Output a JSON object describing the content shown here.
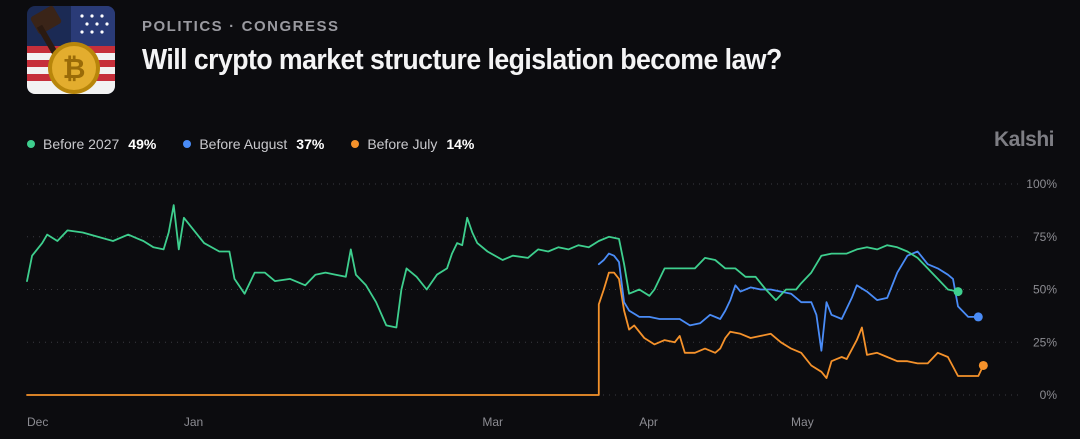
{
  "header": {
    "category": "POLITICS",
    "subcategory": "CONGRESS",
    "separator": "·",
    "title": "Will crypto market structure legislation become law?"
  },
  "brand": "Kalshi",
  "legend": [
    {
      "label": "Before 2027",
      "value": "49%",
      "color": "#3ecf8e"
    },
    {
      "label": "Before August",
      "value": "37%",
      "color": "#4a8cf7"
    },
    {
      "label": "Before July",
      "value": "14%",
      "color": "#f5922b"
    }
  ],
  "chart_data": {
    "type": "line",
    "ylim": [
      0,
      100
    ],
    "y_ticks": [
      "100%",
      "75%",
      "50%",
      "25%",
      "0%"
    ],
    "x_ticks": [
      {
        "label": "Dec",
        "day": 0
      },
      {
        "label": "Jan",
        "day": 31
      },
      {
        "label": "Mar",
        "day": 90
      },
      {
        "label": "Apr",
        "day": 121
      },
      {
        "label": "May",
        "day": 151
      }
    ],
    "series": [
      {
        "name": "Before 2027",
        "color": "#3ecf8e",
        "points": [
          [
            0,
            54
          ],
          [
            1,
            66
          ],
          [
            3,
            72
          ],
          [
            4,
            76
          ],
          [
            6,
            73
          ],
          [
            8,
            78
          ],
          [
            11,
            77
          ],
          [
            14,
            75
          ],
          [
            17,
            73
          ],
          [
            20,
            76
          ],
          [
            22,
            74
          ],
          [
            23,
            73
          ],
          [
            25,
            70
          ],
          [
            27,
            69
          ],
          [
            28,
            77
          ],
          [
            29,
            90
          ],
          [
            30,
            69
          ],
          [
            31,
            84
          ],
          [
            33,
            78
          ],
          [
            35,
            72
          ],
          [
            38,
            68
          ],
          [
            40,
            68
          ],
          [
            41,
            55
          ],
          [
            43,
            48
          ],
          [
            45,
            58
          ],
          [
            47,
            58
          ],
          [
            49,
            54
          ],
          [
            52,
            55
          ],
          [
            55,
            52
          ],
          [
            57,
            57
          ],
          [
            59,
            58
          ],
          [
            61,
            57
          ],
          [
            63,
            56
          ],
          [
            64,
            69
          ],
          [
            65,
            57
          ],
          [
            67,
            52
          ],
          [
            69,
            44
          ],
          [
            71,
            33
          ],
          [
            73,
            32
          ],
          [
            74,
            50
          ],
          [
            75,
            60
          ],
          [
            77,
            56
          ],
          [
            79,
            50
          ],
          [
            81,
            57
          ],
          [
            83,
            60
          ],
          [
            84,
            67
          ],
          [
            85,
            72
          ],
          [
            86,
            71
          ],
          [
            87,
            84
          ],
          [
            88,
            77
          ],
          [
            89,
            72
          ],
          [
            91,
            68
          ],
          [
            94,
            64
          ],
          [
            96,
            66
          ],
          [
            99,
            65
          ],
          [
            101,
            69
          ],
          [
            103,
            68
          ],
          [
            105,
            70
          ],
          [
            107,
            69
          ],
          [
            109,
            71
          ],
          [
            111,
            70
          ],
          [
            113,
            73
          ],
          [
            115,
            75
          ],
          [
            117,
            74
          ],
          [
            118,
            62
          ],
          [
            119,
            48
          ],
          [
            121,
            50
          ],
          [
            123,
            47
          ],
          [
            124,
            50
          ],
          [
            126,
            60
          ],
          [
            128,
            60
          ],
          [
            130,
            60
          ],
          [
            132,
            60
          ],
          [
            134,
            65
          ],
          [
            136,
            64
          ],
          [
            138,
            60
          ],
          [
            140,
            60
          ],
          [
            142,
            56
          ],
          [
            144,
            56
          ],
          [
            146,
            50
          ],
          [
            148,
            45
          ],
          [
            150,
            50
          ],
          [
            152,
            50
          ],
          [
            153,
            53
          ],
          [
            155,
            58
          ],
          [
            157,
            66
          ],
          [
            159,
            67
          ],
          [
            162,
            67
          ],
          [
            164,
            69
          ],
          [
            166,
            70
          ],
          [
            168,
            69
          ],
          [
            170,
            71
          ],
          [
            172,
            70
          ],
          [
            174,
            68
          ],
          [
            176,
            65
          ],
          [
            178,
            60
          ],
          [
            180,
            55
          ],
          [
            182,
            50
          ],
          [
            184,
            49
          ]
        ]
      },
      {
        "name": "Before August",
        "color": "#4a8cf7",
        "points": [
          [
            113,
            62
          ],
          [
            114,
            64
          ],
          [
            115,
            67
          ],
          [
            116,
            66
          ],
          [
            117,
            63
          ],
          [
            118,
            44
          ],
          [
            119,
            40
          ],
          [
            121,
            37
          ],
          [
            123,
            37
          ],
          [
            125,
            36
          ],
          [
            127,
            36
          ],
          [
            129,
            36
          ],
          [
            131,
            33
          ],
          [
            133,
            34
          ],
          [
            135,
            38
          ],
          [
            137,
            36
          ],
          [
            138,
            40
          ],
          [
            139,
            45
          ],
          [
            140,
            52
          ],
          [
            141,
            49
          ],
          [
            143,
            51
          ],
          [
            145,
            50
          ],
          [
            147,
            50
          ],
          [
            149,
            49
          ],
          [
            151,
            48
          ],
          [
            153,
            44
          ],
          [
            155,
            44
          ],
          [
            156,
            38
          ],
          [
            157,
            21
          ],
          [
            158,
            44
          ],
          [
            159,
            38
          ],
          [
            161,
            36
          ],
          [
            163,
            46
          ],
          [
            164,
            52
          ],
          [
            166,
            49
          ],
          [
            168,
            45
          ],
          [
            170,
            46
          ],
          [
            172,
            58
          ],
          [
            174,
            66
          ],
          [
            176,
            68
          ],
          [
            178,
            62
          ],
          [
            180,
            60
          ],
          [
            182,
            57
          ],
          [
            183,
            55
          ],
          [
            184,
            42
          ],
          [
            186,
            37
          ],
          [
            188,
            37
          ]
        ]
      },
      {
        "name": "Before July",
        "color": "#f5922b",
        "points": [
          [
            0,
            0
          ],
          [
            113,
            0
          ],
          [
            113,
            43
          ],
          [
            114,
            50
          ],
          [
            115,
            58
          ],
          [
            116,
            58
          ],
          [
            117,
            55
          ],
          [
            118,
            40
          ],
          [
            119,
            31
          ],
          [
            120,
            33
          ],
          [
            122,
            27
          ],
          [
            124,
            24
          ],
          [
            126,
            26
          ],
          [
            128,
            25
          ],
          [
            129,
            28
          ],
          [
            130,
            20
          ],
          [
            132,
            20
          ],
          [
            134,
            22
          ],
          [
            136,
            20
          ],
          [
            137,
            22
          ],
          [
            138,
            27
          ],
          [
            139,
            30
          ],
          [
            141,
            29
          ],
          [
            143,
            27
          ],
          [
            145,
            28
          ],
          [
            147,
            29
          ],
          [
            149,
            25
          ],
          [
            151,
            22
          ],
          [
            153,
            20
          ],
          [
            155,
            14
          ],
          [
            157,
            11
          ],
          [
            158,
            8
          ],
          [
            159,
            16
          ],
          [
            160,
            17
          ],
          [
            161,
            18
          ],
          [
            162,
            17
          ],
          [
            164,
            26
          ],
          [
            165,
            32
          ],
          [
            166,
            19
          ],
          [
            168,
            20
          ],
          [
            170,
            18
          ],
          [
            172,
            16
          ],
          [
            174,
            16
          ],
          [
            176,
            15
          ],
          [
            178,
            15
          ],
          [
            180,
            20
          ],
          [
            182,
            18
          ],
          [
            184,
            9
          ],
          [
            186,
            9
          ],
          [
            188,
            9
          ],
          [
            189,
            14
          ]
        ]
      }
    ]
  }
}
